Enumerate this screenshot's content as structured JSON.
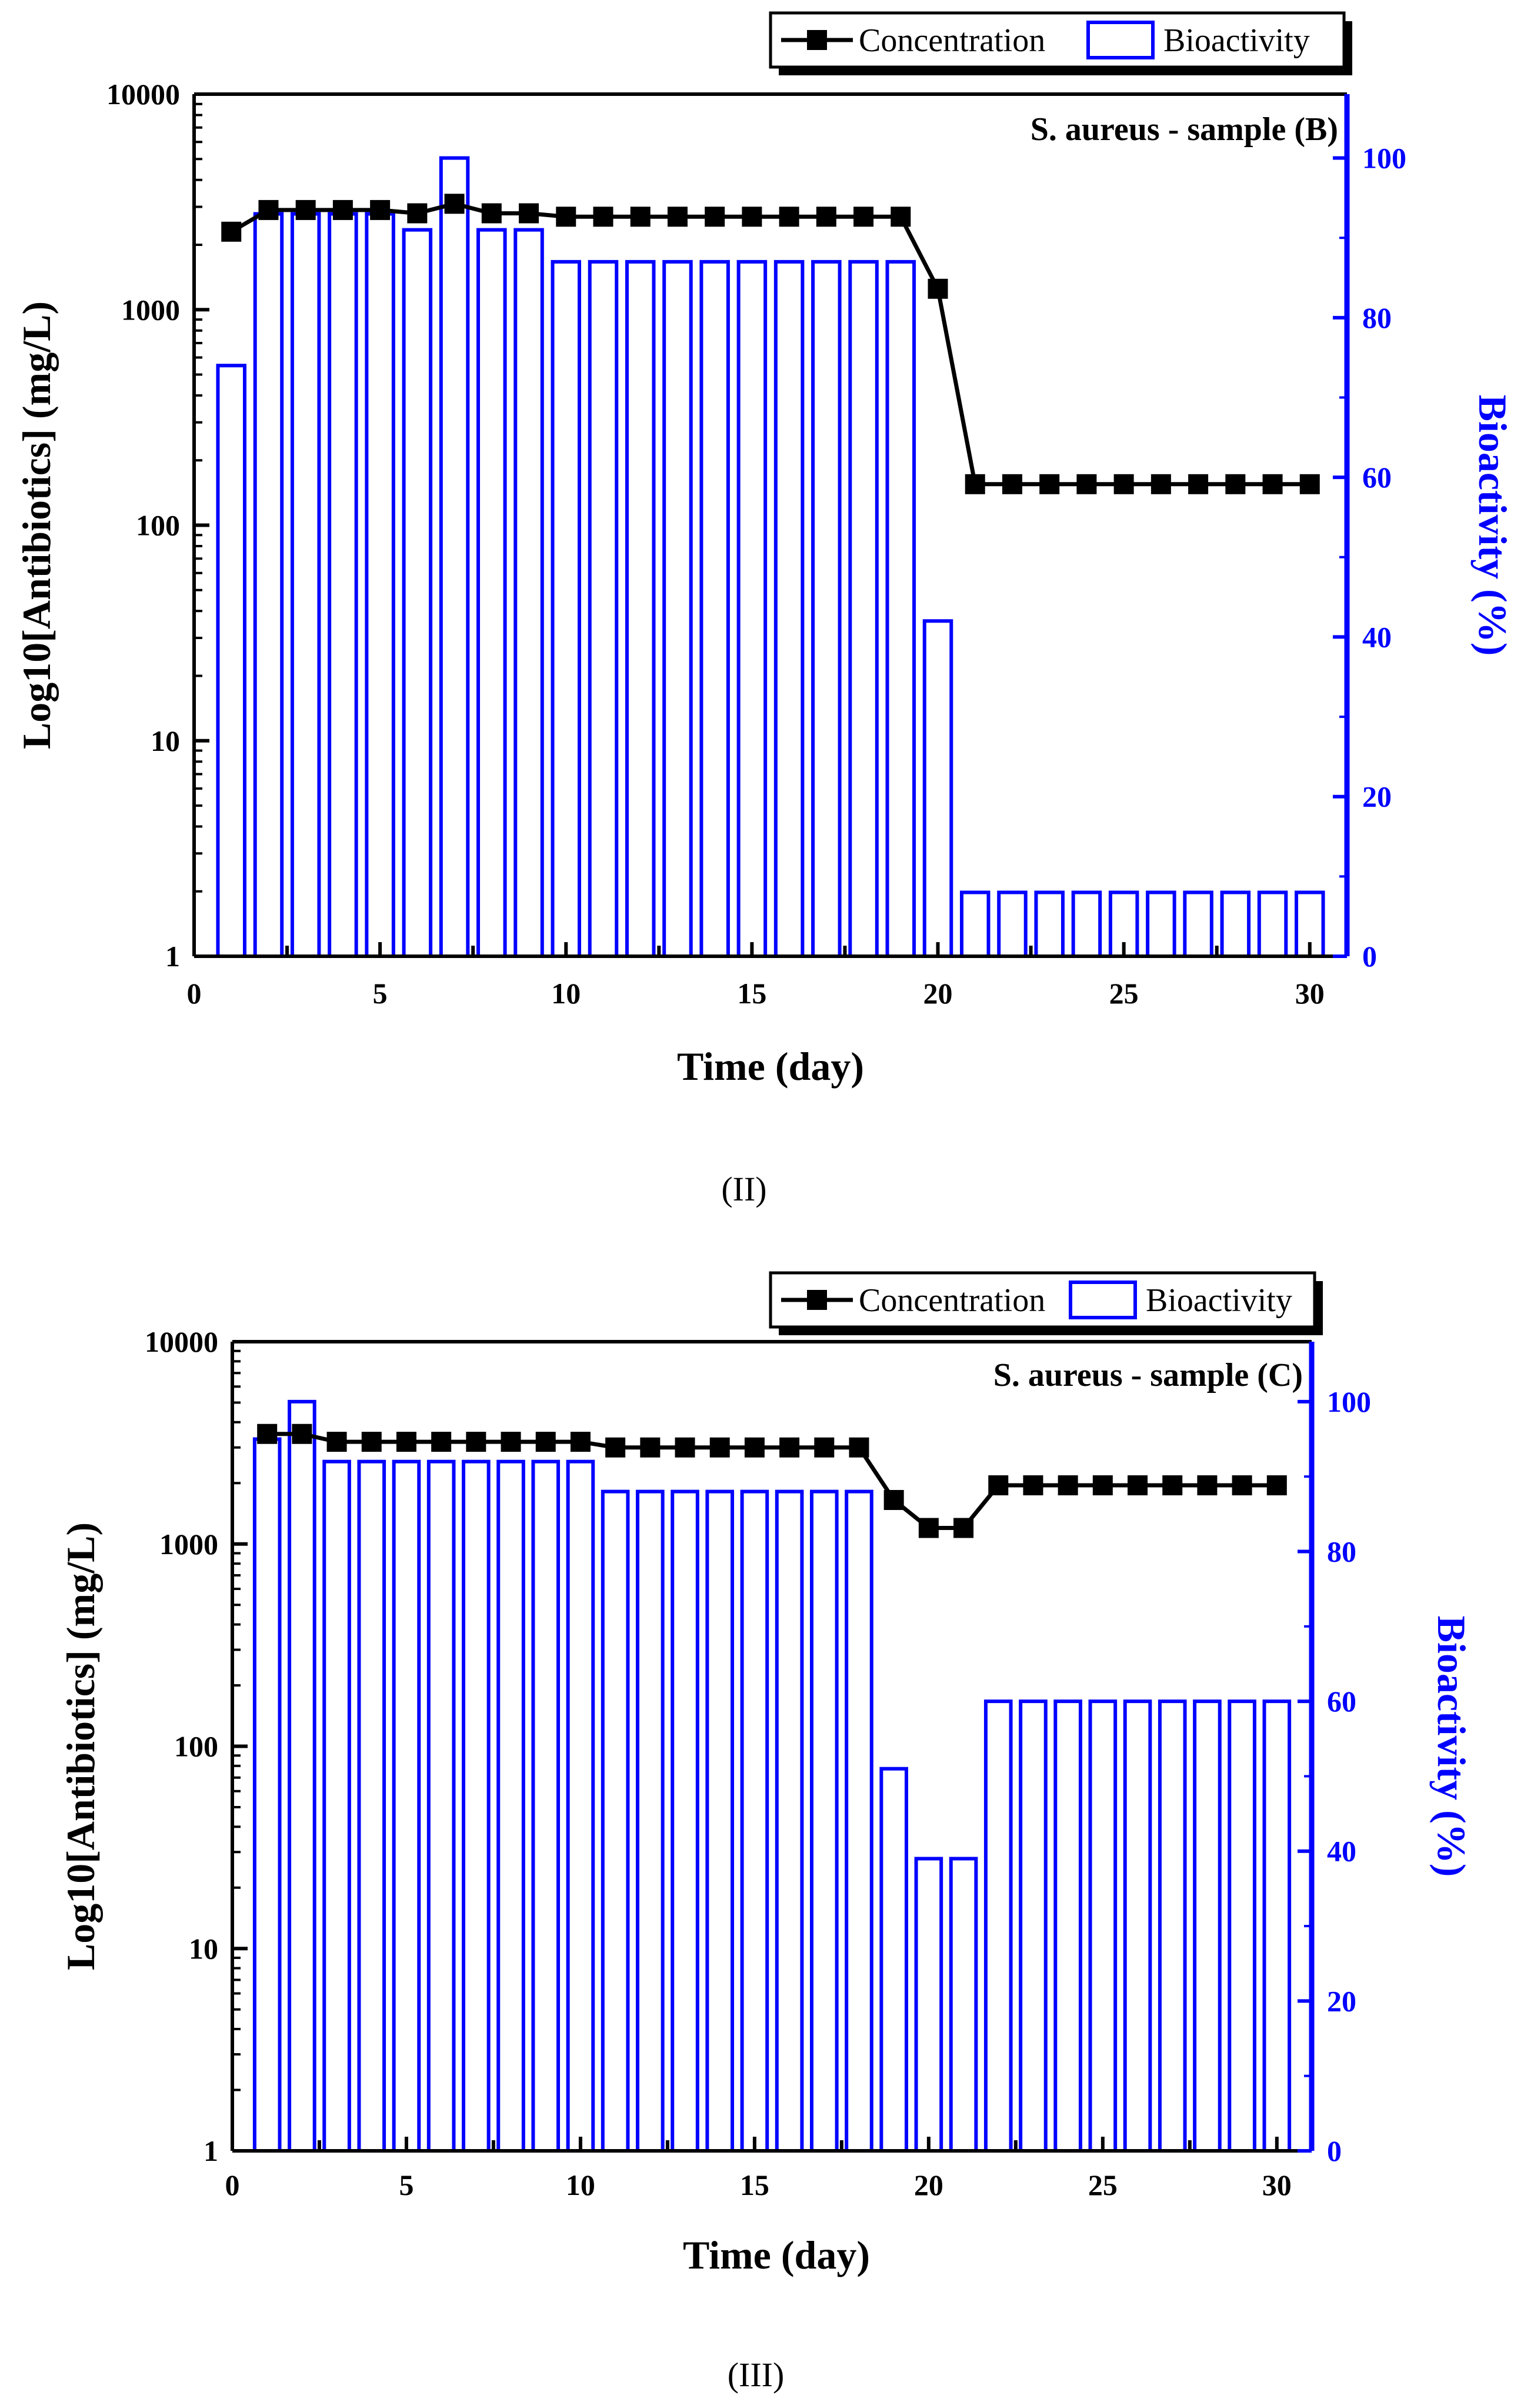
{
  "chart_data": [
    {
      "type": "bar+line",
      "panel_label": "(II)",
      "annotation": "S. aureus - sample (B)",
      "xlabel": "Time (day)",
      "ylabel_left": "Log10[Antibiotics] (mg/L)",
      "ylabel_right": "Bioactivity (%)",
      "xlim": [
        0,
        31
      ],
      "ylim_left": [
        1,
        10000
      ],
      "ylim_right": [
        0,
        108
      ],
      "x_ticks": [
        "0",
        "5",
        "10",
        "15",
        "20",
        "25",
        "30"
      ],
      "y_left_ticks": [
        "1",
        "10",
        "100",
        "1000",
        "10000"
      ],
      "y_right_ticks": [
        "0",
        "20",
        "40",
        "60",
        "80",
        "100"
      ],
      "legend": {
        "line": "Concentration",
        "bar": "Bioactivity"
      },
      "x": [
        1,
        2,
        3,
        4,
        5,
        6,
        7,
        8,
        9,
        10,
        11,
        12,
        13,
        14,
        15,
        16,
        17,
        18,
        19,
        20,
        21,
        22,
        23,
        24,
        25,
        26,
        27,
        28,
        29,
        30
      ],
      "series": [
        {
          "name": "Concentration",
          "axis": "left",
          "scale": "log",
          "values": [
            2300,
            2900,
            2900,
            2900,
            2900,
            2800,
            3100,
            2800,
            2800,
            2700,
            2700,
            2700,
            2700,
            2700,
            2700,
            2700,
            2700,
            2700,
            2700,
            1250,
            155,
            155,
            155,
            155,
            155,
            155,
            155,
            155,
            155,
            155
          ]
        },
        {
          "name": "Bioactivity",
          "axis": "right",
          "scale": "linear",
          "values": [
            74,
            93,
            93,
            93,
            93,
            91,
            100,
            91,
            91,
            87,
            87,
            87,
            87,
            87,
            87,
            87,
            87,
            87,
            87,
            42,
            8,
            8,
            8,
            8,
            8,
            8,
            8,
            8,
            8,
            8
          ]
        }
      ]
    },
    {
      "type": "bar+line",
      "panel_label": "(III)",
      "annotation": "S. aureus - sample (C)",
      "xlabel": "Time (day)",
      "ylabel_left": "Log10[Antibiotics] (mg/L)",
      "ylabel_right": "Bioactivity (%)",
      "xlim": [
        0,
        31
      ],
      "ylim_left": [
        1,
        10000
      ],
      "ylim_right": [
        0,
        108
      ],
      "x_ticks": [
        "0",
        "5",
        "10",
        "15",
        "20",
        "25",
        "30"
      ],
      "y_left_ticks": [
        "1",
        "10",
        "100",
        "1000",
        "10000"
      ],
      "y_right_ticks": [
        "0",
        "20",
        "40",
        "60",
        "80",
        "100"
      ],
      "legend": {
        "line": "Concentration",
        "bar": "Bioactivity"
      },
      "x": [
        1,
        2,
        3,
        4,
        5,
        6,
        7,
        8,
        9,
        10,
        11,
        12,
        13,
        14,
        15,
        16,
        17,
        18,
        19,
        20,
        21,
        22,
        23,
        24,
        25,
        26,
        27,
        28,
        29,
        30
      ],
      "series": [
        {
          "name": "Concentration",
          "axis": "left",
          "scale": "log",
          "values": [
            3500,
            3500,
            3200,
            3200,
            3200,
            3200,
            3200,
            3200,
            3200,
            3200,
            3000,
            3000,
            3000,
            3000,
            3000,
            3000,
            3000,
            3000,
            1650,
            1200,
            1200,
            1950,
            1950,
            1950,
            1950,
            1950,
            1950,
            1950,
            1950,
            1950
          ]
        },
        {
          "name": "Bioactivity",
          "axis": "right",
          "scale": "linear",
          "values": [
            95,
            100,
            92,
            92,
            92,
            92,
            92,
            92,
            92,
            92,
            88,
            88,
            88,
            88,
            88,
            88,
            88,
            88,
            51,
            39,
            39,
            60,
            60,
            60,
            60,
            60,
            60,
            60,
            60,
            60
          ]
        }
      ]
    }
  ],
  "colors": {
    "line": "#000000",
    "bar": "#0000ff",
    "right_axis": "#0000ff"
  }
}
